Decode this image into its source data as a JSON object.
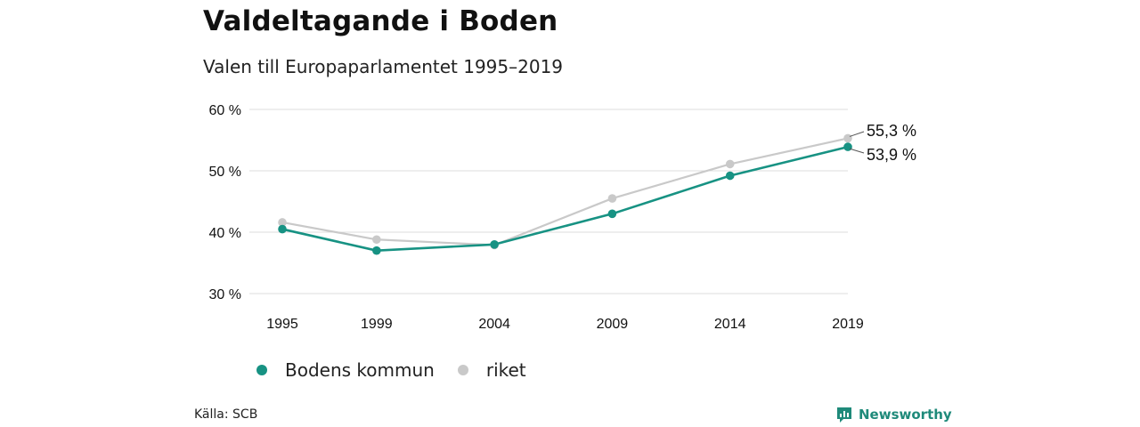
{
  "title": "Valdeltagande i Boden",
  "subtitle": "Valen till Europaparlamentet 1995–2019",
  "source": "Källa: SCB",
  "brand": {
    "name": "Newsworthy",
    "icon": "newsworthy-logo-icon",
    "color": "#1f8a7a"
  },
  "chart_data": {
    "type": "line",
    "x": [
      "1995",
      "1999",
      "2004",
      "2009",
      "2014",
      "2019"
    ],
    "ylim": [
      30,
      60
    ],
    "yticks": [
      30,
      40,
      50,
      60
    ],
    "ytick_labels": [
      "30 %",
      "40 %",
      "50 %",
      "60 %"
    ],
    "grid": true,
    "legend_position": "bottom-left",
    "series": [
      {
        "name": "Bodens kommun",
        "color": "#179283",
        "values": [
          40.5,
          37.0,
          38.0,
          43.0,
          49.2,
          53.9
        ],
        "end_label": "53,9 %"
      },
      {
        "name": "riket",
        "color": "#c9c9c9",
        "values": [
          41.6,
          38.8,
          37.9,
          45.5,
          51.1,
          55.3
        ],
        "end_label": "55,3 %"
      }
    ]
  }
}
